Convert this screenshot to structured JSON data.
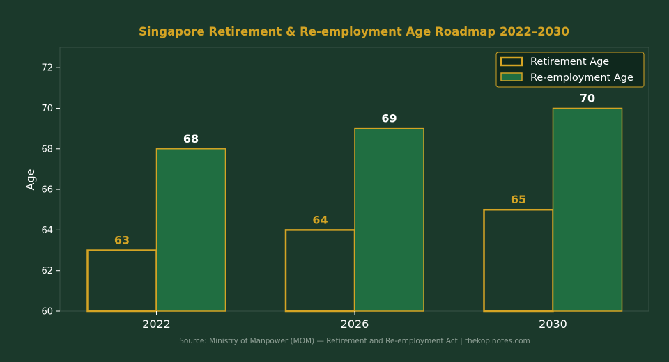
{
  "colors": {
    "background": "#1b392b",
    "accent": "#d4a424",
    "bar_fill": "#206e41",
    "text": "#ffffff",
    "legend_bg": "#0f281d",
    "source_text": "#8fa096",
    "frame": "#3a5447"
  },
  "source": "Source: Ministry of Manpower (MOM) — Retirement and Re-employment Act | thekopinotes.com",
  "chart_data": {
    "type": "bar",
    "title": "Singapore Retirement & Re-employment Age Roadmap 2022–2030",
    "xlabel": "",
    "ylabel": "Age",
    "categories": [
      "2022",
      "2026",
      "2030"
    ],
    "series": [
      {
        "name": "Retirement Age",
        "values": [
          63,
          64,
          65
        ],
        "style": "outline"
      },
      {
        "name": "Re-employment Age",
        "values": [
          68,
          69,
          70
        ],
        "style": "filled"
      }
    ],
    "ylim": [
      60,
      73
    ],
    "yticks": [
      60,
      62,
      64,
      66,
      68,
      70,
      72
    ],
    "grid": false,
    "legend": "top-right",
    "data_labels": true
  }
}
